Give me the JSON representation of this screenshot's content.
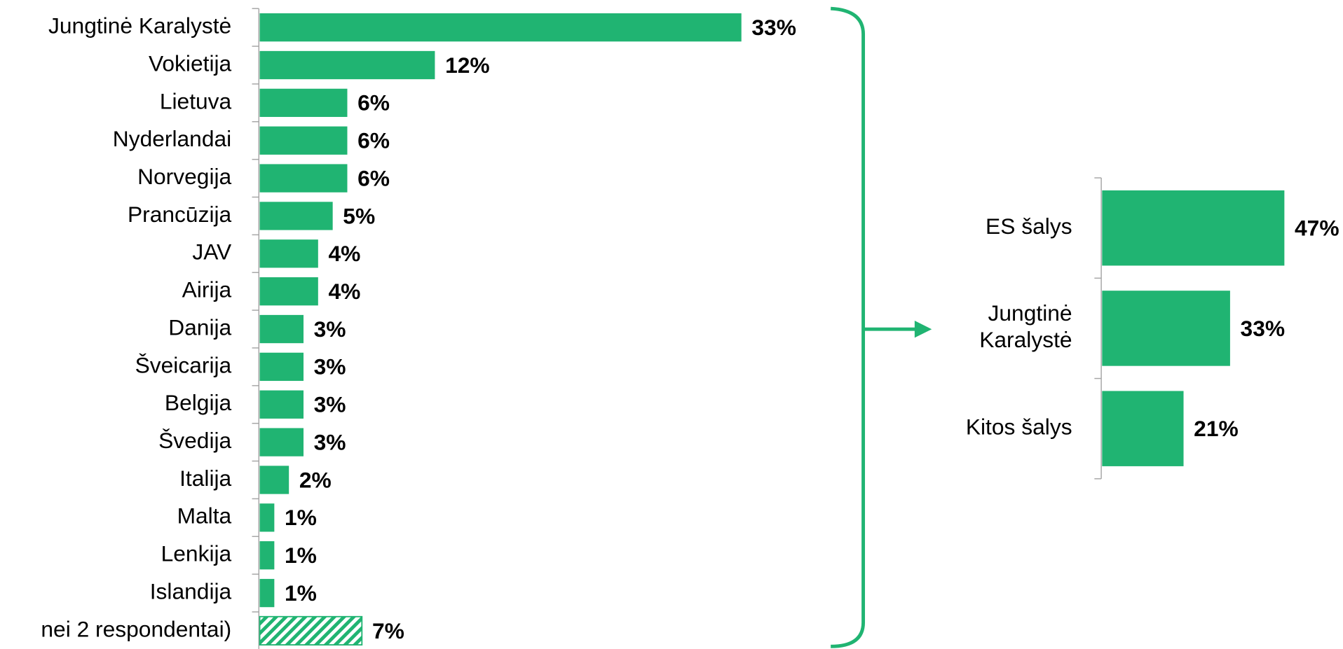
{
  "chart_data": [
    {
      "type": "bar",
      "orientation": "horizontal",
      "color": "#20b472",
      "categories": [
        "Jungtinė Karalystė",
        "Vokietija",
        "Lietuva",
        "Nyderlandai",
        "Norvegija",
        "Prancūzija",
        "JAV",
        "Airija",
        "Danija",
        "Šveicarija",
        "Belgija",
        "Švedija",
        "Italija",
        "Malta",
        "Lenkija",
        "Islandija",
        "nei 2 respondentai)"
      ],
      "values": [
        33,
        12,
        6,
        6,
        6,
        5,
        4,
        4,
        3,
        3,
        3,
        3,
        2,
        1,
        1,
        1,
        7
      ],
      "value_labels": [
        "33%",
        "12%",
        "6%",
        "6%",
        "6%",
        "5%",
        "4%",
        "4%",
        "3%",
        "3%",
        "3%",
        "3%",
        "2%",
        "1%",
        "1%",
        "1%",
        "7%"
      ],
      "hatched": [
        false,
        false,
        false,
        false,
        false,
        false,
        false,
        false,
        false,
        false,
        false,
        false,
        false,
        false,
        false,
        false,
        true
      ]
    },
    {
      "type": "bar",
      "orientation": "horizontal",
      "color": "#20b472",
      "categories": [
        "ES šalys",
        "Jungtinė\nKaralystė",
        "Kitos šalys"
      ],
      "values": [
        47,
        33,
        21
      ],
      "value_labels": [
        "47%",
        "33%",
        "21%"
      ]
    }
  ]
}
